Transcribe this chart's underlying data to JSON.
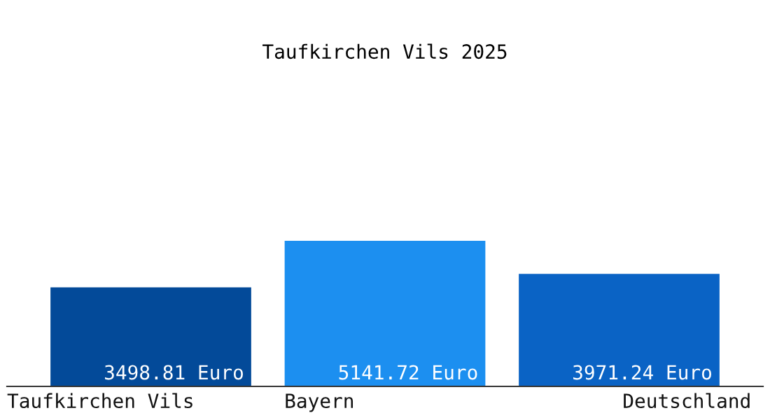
{
  "chart_data": {
    "type": "bar",
    "title": "Taufkirchen Vils 2025",
    "categories": [
      "Taufkirchen Vils",
      "Bayern",
      "Deutschland"
    ],
    "values": [
      3498.81,
      5141.72,
      3971.24
    ],
    "colors": [
      "#034a99",
      "#1c8ff0",
      "#0a63c5"
    ],
    "value_labels": [
      "3498.81 Euro",
      "5141.72 Euro",
      "3971.24 Euro"
    ]
  }
}
